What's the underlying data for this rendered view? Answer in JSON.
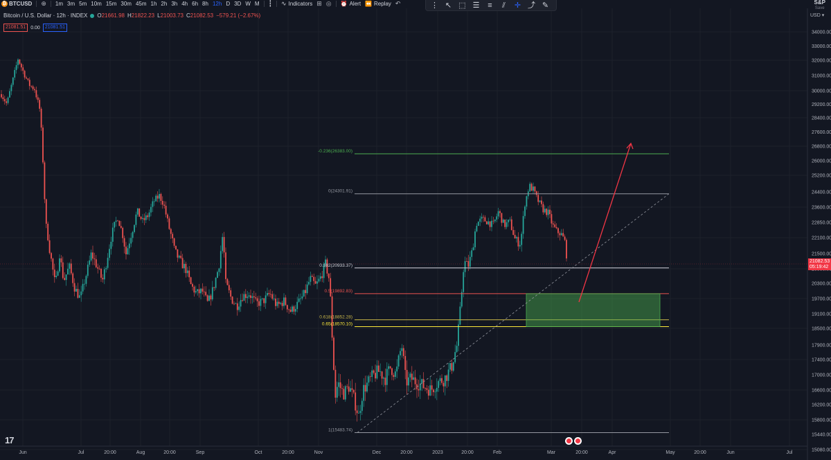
{
  "toolbar": {
    "symbol": "BTCUSD",
    "symbol_logo": "₿",
    "intervals": [
      "1m",
      "3m",
      "5m",
      "10m",
      "15m",
      "30m",
      "45m",
      "1h",
      "2h",
      "3h",
      "4h",
      "6h",
      "8h",
      "12h",
      "D",
      "3D",
      "W",
      "M"
    ],
    "active_interval": "12h",
    "indicators_label": "Indicators",
    "alert_label": "Alert",
    "replay_label": "Replay",
    "save_name": "S&P",
    "save_label": "Save"
  },
  "legend": {
    "title": "Bitcoin / U.S. Dollar · 12h · INDEX",
    "o_key": "O",
    "o_val": "21661.98",
    "h_key": "H",
    "h_val": "21822.23",
    "l_key": "L",
    "l_val": "21003.73",
    "c_key": "C",
    "c_val": "21082.53",
    "change": "−579.21 (−2.67%)",
    "sell": "21081.51",
    "spread": "0.00",
    "buy": "21081.51"
  },
  "price_scale": {
    "currency": "USD",
    "labels": [
      "34000.00",
      "33000.00",
      "32000.00",
      "31000.00",
      "30000.00",
      "29200.00",
      "28400.00",
      "27600.00",
      "26800.00",
      "26000.00",
      "25200.00",
      "24400.00",
      "23600.00",
      "22850.00",
      "22100.00",
      "21500.00",
      "20900.00",
      "20300.00",
      "19700.00",
      "19100.00",
      "18500.00",
      "17900.00",
      "17400.00",
      "17000.00",
      "16600.00",
      "16200.00",
      "15800.00",
      "15440.00",
      "15080.00",
      "14720.00"
    ],
    "current_price": "21082.53",
    "countdown": "05:19:42"
  },
  "time_scale": {
    "labels": [
      "Jun",
      "Jul",
      "20:00",
      "Aug",
      "20:00",
      "Sep",
      "Oct",
      "20:00",
      "Nov",
      "Dec",
      "20:00",
      "2023",
      "20:00",
      "Feb",
      "Mar",
      "20:00",
      "Apr",
      "May",
      "20:00",
      "Jun",
      "Jul"
    ]
  },
  "fib": [
    {
      "label": "-0.236(26383.00)",
      "price": 26383.0,
      "color": "#4caf50"
    },
    {
      "label": "0(24301.91)",
      "price": 24301.91,
      "color": "#9598a1"
    },
    {
      "label": "0.382(20933.37)",
      "price": 20933.37,
      "color": "#d1d4dc"
    },
    {
      "label": "0.5(19892.83)",
      "price": 19892.83,
      "color": "#ef5350"
    },
    {
      "label": "0.618(18852.28)",
      "price": 18852.28,
      "color": "#c9b74a"
    },
    {
      "label": "0.65(18570.10)",
      "price": 18570.1,
      "color": "#ffeb3b"
    },
    {
      "label": "1(15483.74)",
      "price": 15483.74,
      "color": "#9598a1"
    }
  ],
  "colors": {
    "up": "#26a69a",
    "down": "#ef5350",
    "zone": "#4caf50",
    "arrow": "#f23645",
    "background": "#131722"
  },
  "icons": {
    "logo": "tradingview-logo",
    "add_symbol": "plus-circle-icon",
    "indicators": "indicators-icon",
    "alert": "alarm-clock-icon",
    "replay": "rewind-icon"
  }
}
